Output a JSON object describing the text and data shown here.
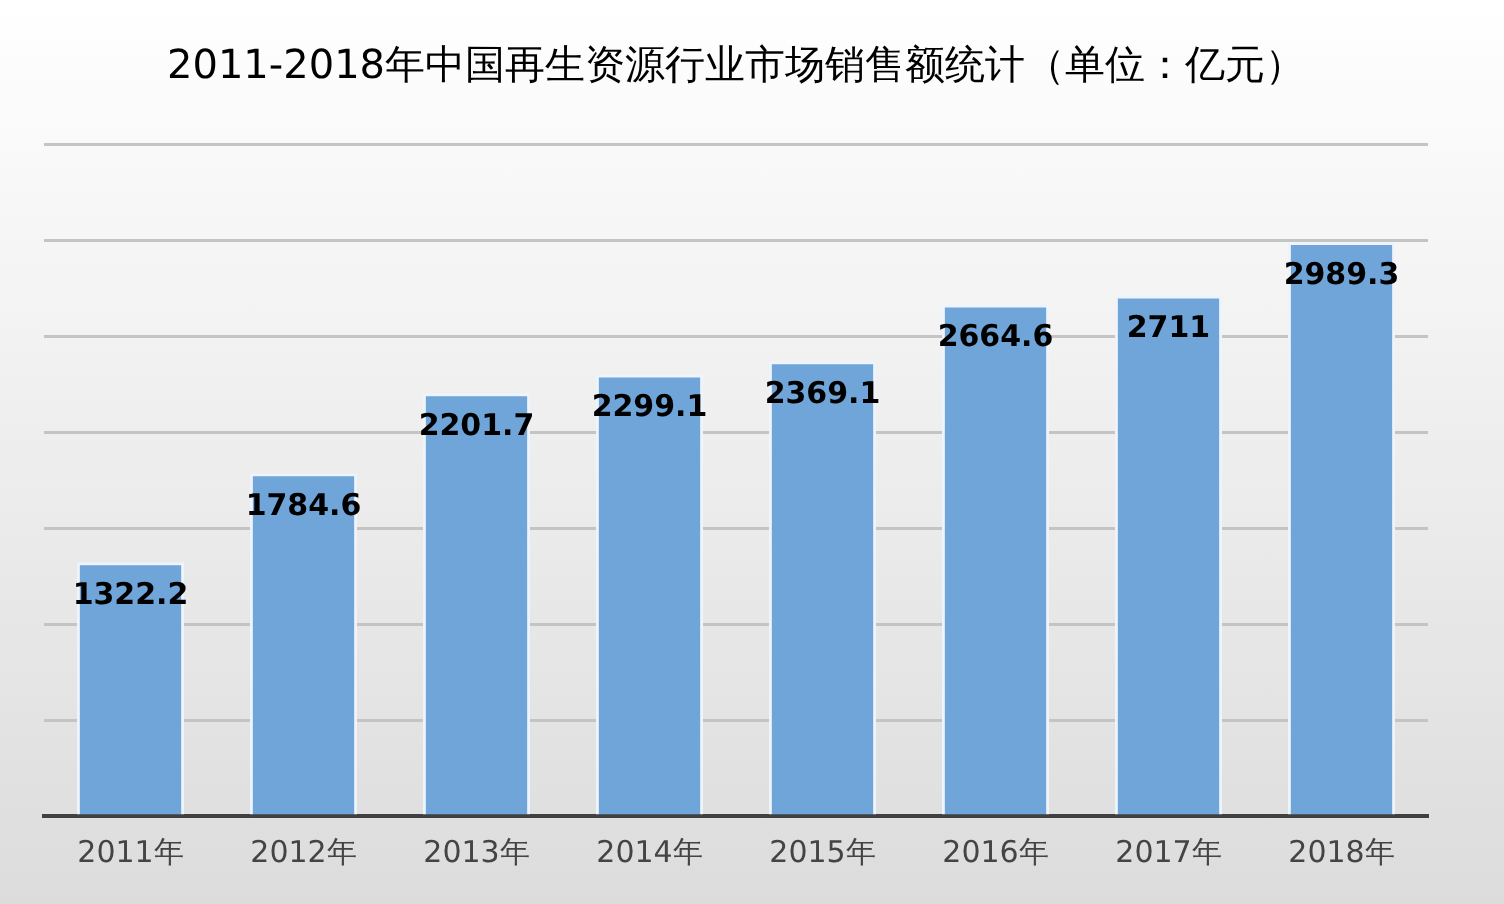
{
  "chart_data": {
    "type": "bar",
    "title": "2011-2018年中国再生资源行业市场销售额统计（单位：亿元）",
    "categories": [
      "2011年",
      "2012年",
      "2013年",
      "2014年",
      "2015年",
      "2016年",
      "2017年",
      "2018年"
    ],
    "values": [
      1322.2,
      1784.6,
      2201.7,
      2299.1,
      2369.1,
      2664.6,
      2711,
      2989.3
    ],
    "color": "#6fa5d9",
    "ylim": [
      0,
      3500
    ],
    "yticks": [
      {
        "value": 0,
        "label": null
      },
      {
        "value": 500,
        "label": null
      },
      {
        "value": 1000,
        "label": null
      },
      {
        "value": 1500,
        "label": null
      },
      {
        "value": 2000,
        "label": null
      },
      {
        "value": 2500,
        "label": null
      },
      {
        "value": 3000,
        "label": null
      },
      {
        "value": 3500,
        "label": null
      }
    ],
    "tick_labels": "x",
    "grid": "y",
    "legend": false,
    "data_labels": true
  }
}
